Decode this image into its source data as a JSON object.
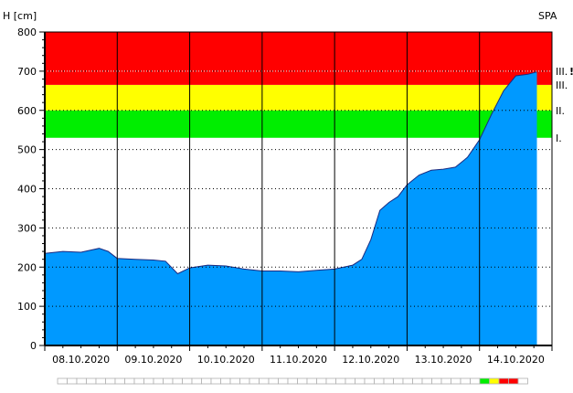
{
  "chart_data": {
    "type": "area",
    "ylabel": "H [cm]",
    "station_code": "SPA",
    "ylim": [
      0,
      800
    ],
    "y_ticks": [
      0,
      100,
      200,
      300,
      400,
      500,
      600,
      700,
      800
    ],
    "x_day_labels": [
      "08.10.2020",
      "09.10.2020",
      "10.10.2020",
      "11.10.2020",
      "12.10.2020",
      "13.10.2020",
      "14.10.2020"
    ],
    "x_start": "2020-10-08",
    "x_end": "2020-10-15",
    "bands": [
      {
        "label": "I.",
        "from": 530,
        "to": 600,
        "color": "#00ee00"
      },
      {
        "label": "II.",
        "from": 600,
        "to": 665,
        "color": "#ffff00"
      },
      {
        "label": "III.",
        "from": 665,
        "to": 800,
        "color": "#ff0000"
      }
    ],
    "extreme_level": {
      "label": "III.",
      "flag": "!",
      "value": 700,
      "flag_color": "#ff0000"
    },
    "fill_color": "#0099ff",
    "grid": true,
    "legend_status_colors": [
      "#00ee00",
      "#ffff00",
      "#ff0000",
      "#ff0000"
    ],
    "series": [
      {
        "values": [
          [
            "2020-10-08T00:00",
            235
          ],
          [
            "2020-10-08T06:00",
            240
          ],
          [
            "2020-10-08T12:00",
            238
          ],
          [
            "2020-10-08T18:00",
            248
          ],
          [
            "2020-10-08T21:00",
            240
          ],
          [
            "2020-10-09T00:00",
            222
          ],
          [
            "2020-10-09T06:00",
            220
          ],
          [
            "2020-10-09T12:00",
            218
          ],
          [
            "2020-10-09T16:00",
            215
          ],
          [
            "2020-10-09T20:00",
            183
          ],
          [
            "2020-10-10T00:00",
            198
          ],
          [
            "2020-10-10T06:00",
            205
          ],
          [
            "2020-10-10T12:00",
            203
          ],
          [
            "2020-10-10T18:00",
            195
          ],
          [
            "2020-10-11T00:00",
            190
          ],
          [
            "2020-10-11T06:00",
            190
          ],
          [
            "2020-10-11T12:00",
            188
          ],
          [
            "2020-10-11T18:00",
            192
          ],
          [
            "2020-10-12T00:00",
            195
          ],
          [
            "2020-10-12T06:00",
            205
          ],
          [
            "2020-10-12T09:00",
            220
          ],
          [
            "2020-10-12T12:00",
            270
          ],
          [
            "2020-10-12T15:00",
            345
          ],
          [
            "2020-10-12T18:00",
            365
          ],
          [
            "2020-10-12T21:00",
            380
          ],
          [
            "2020-10-13T00:00",
            410
          ],
          [
            "2020-10-13T04:00",
            435
          ],
          [
            "2020-10-13T08:00",
            447
          ],
          [
            "2020-10-13T12:00",
            450
          ],
          [
            "2020-10-13T16:00",
            455
          ],
          [
            "2020-10-13T20:00",
            480
          ],
          [
            "2020-10-14T00:00",
            525
          ],
          [
            "2020-10-14T04:00",
            590
          ],
          [
            "2020-10-14T08:00",
            650
          ],
          [
            "2020-10-14T12:00",
            688
          ],
          [
            "2020-10-14T16:00",
            692
          ],
          [
            "2020-10-14T19:00",
            698
          ]
        ]
      }
    ]
  }
}
